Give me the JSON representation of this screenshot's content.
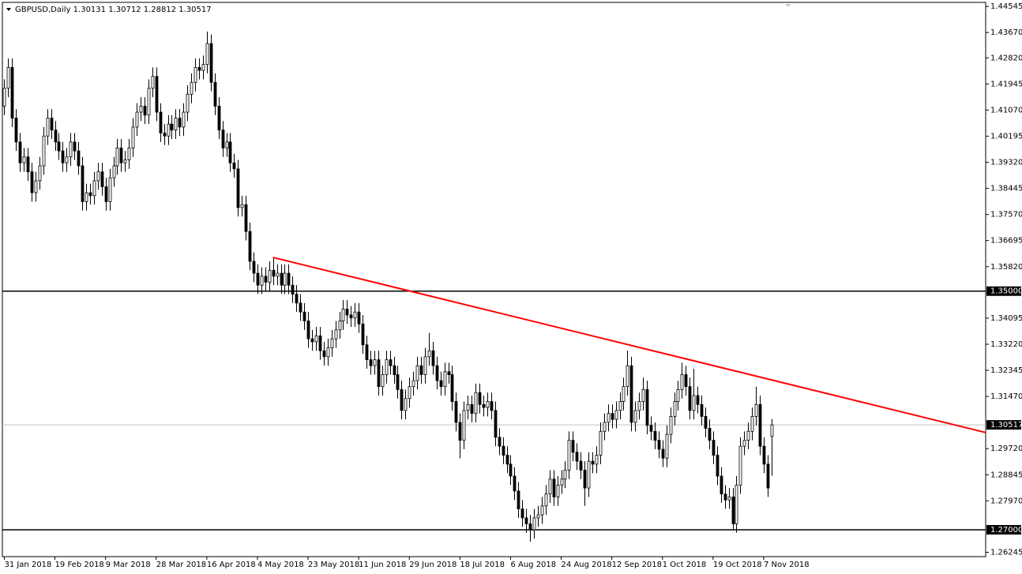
{
  "chart_data": {
    "type": "candlestick",
    "title": "GBPUSD,Daily  1.30131 1.30712 1.28812 1.30517",
    "open": [
      1.412,
      1.418,
      1.425,
      1.408,
      1.4,
      1.393,
      1.395,
      1.39,
      1.383,
      1.387,
      1.392,
      1.402,
      1.408,
      1.404,
      1.4,
      1.397,
      1.393,
      1.395,
      1.4,
      1.397,
      1.392,
      1.38,
      1.383,
      1.382,
      1.387,
      1.39,
      1.385,
      1.38,
      1.388,
      1.392,
      1.398,
      1.393,
      1.394,
      1.398,
      1.405,
      1.41,
      1.412,
      1.409,
      1.418,
      1.422,
      1.41,
      1.403,
      1.402,
      1.406,
      1.404,
      1.408,
      1.405,
      1.41,
      1.416,
      1.42,
      1.425,
      1.424,
      1.426,
      1.433,
      1.42,
      1.412,
      1.404,
      1.398,
      1.4,
      1.393,
      1.391,
      1.378,
      1.379,
      1.37,
      1.36,
      1.356,
      1.352,
      1.355,
      1.353,
      1.357,
      1.355,
      1.356,
      1.352,
      1.356,
      1.352,
      1.349,
      1.346,
      1.343,
      1.34,
      1.334,
      1.333,
      1.335,
      1.33,
      1.328,
      1.331,
      1.334,
      1.337,
      1.34,
      1.344,
      1.342,
      1.341,
      1.343,
      1.339,
      1.332,
      1.327,
      1.325,
      1.327,
      1.318,
      1.322,
      1.327,
      1.325,
      1.322,
      1.317,
      1.31,
      1.314,
      1.318,
      1.32,
      1.325,
      1.322,
      1.328,
      1.33,
      1.325,
      1.32,
      1.318,
      1.323,
      1.322,
      1.313,
      1.306,
      1.3,
      1.31,
      1.312,
      1.309,
      1.316,
      1.312,
      1.311,
      1.313,
      1.31,
      1.301,
      1.298,
      1.295,
      1.292,
      1.288,
      1.283,
      1.277,
      1.274,
      1.272,
      1.27,
      1.274,
      1.275,
      1.278,
      1.282,
      1.287,
      1.281,
      1.285,
      1.287,
      1.29,
      1.3,
      1.296,
      1.293,
      1.29,
      1.284,
      1.293,
      1.292,
      1.295,
      1.303,
      1.306,
      1.309,
      1.307,
      1.31,
      1.313,
      1.318,
      1.325,
      1.306,
      1.31,
      1.313,
      1.317,
      1.305,
      1.303,
      1.3,
      1.297,
      1.294,
      1.302,
      1.308,
      1.313,
      1.317,
      1.322,
      1.318,
      1.31,
      1.315,
      1.312,
      1.308,
      1.304,
      1.3,
      1.295,
      1.288,
      1.282,
      1.28,
      1.281,
      1.272,
      1.285,
      1.298,
      1.3,
      1.303,
      1.308,
      1.312,
      1.298,
      1.292,
      1.30131
    ],
    "high": [
      1.421,
      1.428,
      1.428,
      1.411,
      1.403,
      1.398,
      1.398,
      1.393,
      1.39,
      1.395,
      1.405,
      1.411,
      1.411,
      1.407,
      1.403,
      1.4,
      1.398,
      1.403,
      1.403,
      1.4,
      1.395,
      1.386,
      1.386,
      1.39,
      1.393,
      1.393,
      1.388,
      1.391,
      1.395,
      1.401,
      1.401,
      1.397,
      1.401,
      1.408,
      1.413,
      1.415,
      1.415,
      1.421,
      1.425,
      1.425,
      1.413,
      1.406,
      1.409,
      1.409,
      1.411,
      1.411,
      1.413,
      1.419,
      1.423,
      1.428,
      1.428,
      1.429,
      1.437,
      1.436,
      1.423,
      1.415,
      1.407,
      1.403,
      1.403,
      1.396,
      1.394,
      1.382,
      1.382,
      1.373,
      1.363,
      1.359,
      1.358,
      1.358,
      1.36,
      1.361,
      1.359,
      1.359,
      1.359,
      1.359,
      1.355,
      1.352,
      1.349,
      1.346,
      1.343,
      1.337,
      1.338,
      1.338,
      1.333,
      1.334,
      1.337,
      1.34,
      1.343,
      1.347,
      1.347,
      1.345,
      1.346,
      1.346,
      1.342,
      1.335,
      1.33,
      1.33,
      1.33,
      1.325,
      1.33,
      1.33,
      1.328,
      1.325,
      1.32,
      1.317,
      1.321,
      1.323,
      1.328,
      1.328,
      1.331,
      1.336,
      1.333,
      1.328,
      1.323,
      1.326,
      1.326,
      1.325,
      1.316,
      1.309,
      1.313,
      1.315,
      1.315,
      1.319,
      1.319,
      1.315,
      1.316,
      1.316,
      1.313,
      1.304,
      1.301,
      1.298,
      1.295,
      1.291,
      1.286,
      1.28,
      1.277,
      1.275,
      1.277,
      1.278,
      1.281,
      1.285,
      1.29,
      1.29,
      1.288,
      1.29,
      1.293,
      1.303,
      1.303,
      1.299,
      1.296,
      1.293,
      1.296,
      1.296,
      1.298,
      1.306,
      1.309,
      1.312,
      1.312,
      1.313,
      1.316,
      1.321,
      1.33,
      1.328,
      1.313,
      1.316,
      1.321,
      1.32,
      1.308,
      1.306,
      1.303,
      1.3,
      1.305,
      1.311,
      1.316,
      1.32,
      1.326,
      1.325,
      1.321,
      1.324,
      1.318,
      1.315,
      1.311,
      1.307,
      1.303,
      1.298,
      1.291,
      1.285,
      1.284,
      1.284,
      1.288,
      1.301,
      1.303,
      1.306,
      1.311,
      1.318,
      1.315,
      1.301,
      1.295,
      1.30712
    ],
    "low": [
      1.409,
      1.415,
      1.405,
      1.397,
      1.39,
      1.39,
      1.387,
      1.38,
      1.38,
      1.384,
      1.389,
      1.399,
      1.401,
      1.397,
      1.394,
      1.39,
      1.39,
      1.392,
      1.394,
      1.389,
      1.377,
      1.377,
      1.379,
      1.379,
      1.384,
      1.382,
      1.377,
      1.377,
      1.385,
      1.389,
      1.39,
      1.39,
      1.391,
      1.395,
      1.402,
      1.407,
      1.406,
      1.406,
      1.415,
      1.407,
      1.4,
      1.399,
      1.399,
      1.401,
      1.401,
      1.402,
      1.402,
      1.407,
      1.413,
      1.417,
      1.421,
      1.421,
      1.423,
      1.417,
      1.409,
      1.401,
      1.395,
      1.395,
      1.39,
      1.388,
      1.375,
      1.375,
      1.367,
      1.357,
      1.353,
      1.349,
      1.349,
      1.35,
      1.35,
      1.352,
      1.352,
      1.349,
      1.349,
      1.349,
      1.346,
      1.343,
      1.34,
      1.337,
      1.331,
      1.33,
      1.33,
      1.327,
      1.325,
      1.325,
      1.328,
      1.331,
      1.334,
      1.337,
      1.339,
      1.338,
      1.338,
      1.336,
      1.329,
      1.324,
      1.322,
      1.322,
      1.315,
      1.315,
      1.319,
      1.322,
      1.319,
      1.314,
      1.307,
      1.307,
      1.311,
      1.315,
      1.317,
      1.319,
      1.319,
      1.325,
      1.322,
      1.317,
      1.315,
      1.315,
      1.319,
      1.31,
      1.303,
      1.294,
      1.297,
      1.307,
      1.306,
      1.306,
      1.309,
      1.308,
      1.308,
      1.307,
      1.298,
      1.295,
      1.292,
      1.289,
      1.285,
      1.28,
      1.274,
      1.271,
      1.269,
      1.266,
      1.267,
      1.271,
      1.272,
      1.275,
      1.279,
      1.278,
      1.278,
      1.282,
      1.284,
      1.287,
      1.293,
      1.29,
      1.287,
      1.278,
      1.281,
      1.289,
      1.289,
      1.292,
      1.3,
      1.303,
      1.304,
      1.304,
      1.307,
      1.31,
      1.315,
      1.303,
      1.303,
      1.307,
      1.31,
      1.302,
      1.3,
      1.297,
      1.294,
      1.291,
      1.291,
      1.299,
      1.305,
      1.31,
      1.314,
      1.315,
      1.307,
      1.307,
      1.309,
      1.305,
      1.301,
      1.297,
      1.292,
      1.285,
      1.279,
      1.277,
      1.277,
      1.27,
      1.269,
      1.282,
      1.295,
      1.297,
      1.3,
      1.305,
      1.295,
      1.289,
      1.281,
      1.28812
    ],
    "close": [
      1.418,
      1.425,
      1.408,
      1.4,
      1.393,
      1.395,
      1.39,
      1.383,
      1.387,
      1.392,
      1.402,
      1.408,
      1.404,
      1.4,
      1.397,
      1.393,
      1.395,
      1.4,
      1.397,
      1.392,
      1.38,
      1.383,
      1.382,
      1.387,
      1.39,
      1.385,
      1.38,
      1.388,
      1.392,
      1.398,
      1.393,
      1.394,
      1.398,
      1.405,
      1.41,
      1.412,
      1.409,
      1.418,
      1.422,
      1.41,
      1.403,
      1.402,
      1.406,
      1.404,
      1.408,
      1.405,
      1.41,
      1.416,
      1.42,
      1.425,
      1.424,
      1.426,
      1.433,
      1.42,
      1.412,
      1.404,
      1.398,
      1.4,
      1.393,
      1.391,
      1.378,
      1.379,
      1.37,
      1.36,
      1.356,
      1.352,
      1.355,
      1.353,
      1.357,
      1.355,
      1.356,
      1.352,
      1.356,
      1.352,
      1.349,
      1.346,
      1.343,
      1.34,
      1.334,
      1.333,
      1.335,
      1.33,
      1.328,
      1.331,
      1.334,
      1.337,
      1.34,
      1.344,
      1.342,
      1.341,
      1.343,
      1.339,
      1.332,
      1.327,
      1.325,
      1.327,
      1.318,
      1.322,
      1.327,
      1.325,
      1.322,
      1.317,
      1.31,
      1.314,
      1.318,
      1.32,
      1.325,
      1.322,
      1.328,
      1.33,
      1.325,
      1.32,
      1.318,
      1.323,
      1.322,
      1.313,
      1.306,
      1.3,
      1.31,
      1.312,
      1.309,
      1.316,
      1.312,
      1.311,
      1.313,
      1.31,
      1.301,
      1.298,
      1.295,
      1.292,
      1.288,
      1.283,
      1.277,
      1.274,
      1.272,
      1.27,
      1.274,
      1.275,
      1.278,
      1.282,
      1.287,
      1.281,
      1.285,
      1.287,
      1.29,
      1.3,
      1.296,
      1.293,
      1.29,
      1.284,
      1.293,
      1.292,
      1.295,
      1.303,
      1.306,
      1.309,
      1.307,
      1.31,
      1.313,
      1.318,
      1.325,
      1.306,
      1.31,
      1.313,
      1.317,
      1.305,
      1.303,
      1.3,
      1.297,
      1.294,
      1.302,
      1.308,
      1.313,
      1.317,
      1.322,
      1.318,
      1.31,
      1.315,
      1.312,
      1.308,
      1.304,
      1.3,
      1.295,
      1.288,
      1.282,
      1.28,
      1.281,
      1.272,
      1.285,
      1.298,
      1.3,
      1.303,
      1.308,
      1.312,
      1.298,
      1.292,
      1.284,
      1.30517
    ],
    "bull_color": "#ffffff",
    "bear_color": "#000000",
    "xlim": [
      -0.5,
      252
    ],
    "xticks": [
      {
        "value": 0,
        "label": "31 Jan 2018"
      },
      {
        "value": 13,
        "label": "19 Feb 2018"
      },
      {
        "value": 26,
        "label": "9 Mar 2018"
      },
      {
        "value": 39,
        "label": "28 Mar 2018"
      },
      {
        "value": 52,
        "label": "16 Apr 2018"
      },
      {
        "value": 65,
        "label": "4 May 2018"
      },
      {
        "value": 78,
        "label": "23 May 2018"
      },
      {
        "value": 91,
        "label": "11 Jun 2018"
      },
      {
        "value": 104,
        "label": "29 Jun 2018"
      },
      {
        "value": 117,
        "label": "18 Jul 2018"
      },
      {
        "value": 130,
        "label": "6 Aug 2018"
      },
      {
        "value": 143,
        "label": "24 Aug 2018"
      },
      {
        "value": 156,
        "label": "12 Sep 2018"
      },
      {
        "value": 169,
        "label": "1 Oct 2018"
      },
      {
        "value": 182,
        "label": "19 Oct 2018"
      },
      {
        "value": 195,
        "label": "7 Nov 2018"
      }
    ],
    "ylim": [
      1.261,
      1.4468
    ],
    "yticks": [
      1.44545,
      {
        "value": 1.4367,
        "label": "1.43670"
      },
      {
        "value": 1.4282,
        "label": "1.42820"
      },
      1.41945,
      {
        "value": 1.4107,
        "label": "1.41070"
      },
      1.40195,
      {
        "value": 1.3932,
        "label": "1.39320"
      },
      1.38445,
      {
        "value": 1.3757,
        "label": "1.37570"
      },
      1.36695,
      {
        "value": 1.3582,
        "label": "1.35820"
      },
      1.34095,
      {
        "value": 1.3322,
        "label": "1.33220"
      },
      1.32345,
      {
        "value": 1.3147,
        "label": "1.31470"
      },
      {
        "value": 1.2972,
        "label": "1.29720"
      },
      1.28845,
      {
        "value": 1.2797,
        "label": "1.27970"
      },
      1.26245
    ],
    "hlines": [
      {
        "value": 1.35,
        "label": "1.35000",
        "color": "#000000"
      },
      {
        "value": 1.27,
        "label": "1.27000",
        "color": "#000000"
      }
    ],
    "current_price": {
      "value": 1.30517,
      "label": "1.30517",
      "color": "#c0c0c0"
    },
    "trendline": {
      "x": [
        69,
        252
      ],
      "y": [
        1.3613,
        1.3026
      ],
      "color": "#ff0000"
    }
  }
}
